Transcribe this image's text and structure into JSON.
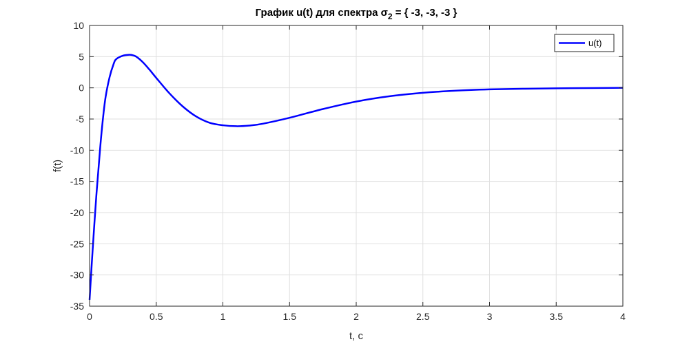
{
  "chart_data": {
    "type": "line",
    "title": {
      "prefix": "График u(t) для спектра σ",
      "subscript": "2",
      "suffix": " = { -3, -3, -3 }"
    },
    "xlabel": "t, c",
    "ylabel": "f(t)",
    "xlim": [
      0,
      4
    ],
    "ylim": [
      -35,
      10
    ],
    "xticks": [
      0,
      0.5,
      1,
      1.5,
      2,
      2.5,
      3,
      3.5,
      4
    ],
    "xtick_labels": [
      "0",
      "0.5",
      "1",
      "1.5",
      "2",
      "2.5",
      "3",
      "3.5",
      "4"
    ],
    "yticks": [
      10,
      5,
      0,
      -5,
      -10,
      -15,
      -20,
      -25,
      -30,
      -35
    ],
    "ytick_labels": [
      "10",
      "5",
      "0",
      "-5",
      "-10",
      "-15",
      "-20",
      "-25",
      "-30",
      "-35"
    ],
    "grid": true,
    "legend_position": "top-right",
    "series": [
      {
        "name": "u(t)",
        "color": "#0000ff",
        "x": [
          0,
          0.02,
          0.05,
          0.08,
          0.1,
          0.12,
          0.15,
          0.18,
          0.2,
          0.25,
          0.3,
          0.32,
          0.35,
          0.4,
          0.45,
          0.5,
          0.6,
          0.7,
          0.8,
          0.9,
          1.0,
          1.1,
          1.2,
          1.3,
          1.5,
          1.75,
          2.0,
          2.25,
          2.5,
          2.75,
          3.0,
          3.25,
          3.5,
          3.75,
          4.0
        ],
        "values": [
          -34,
          -27,
          -17.5,
          -9.5,
          -5,
          -1.5,
          1.7,
          3.8,
          4.6,
          5.15,
          5.3,
          5.25,
          5.0,
          4.1,
          2.9,
          1.6,
          -0.9,
          -3.0,
          -4.6,
          -5.6,
          -6.0,
          -6.15,
          -6.05,
          -5.75,
          -4.8,
          -3.4,
          -2.2,
          -1.35,
          -0.8,
          -0.45,
          -0.25,
          -0.15,
          -0.08,
          -0.03,
          0
        ]
      }
    ]
  }
}
